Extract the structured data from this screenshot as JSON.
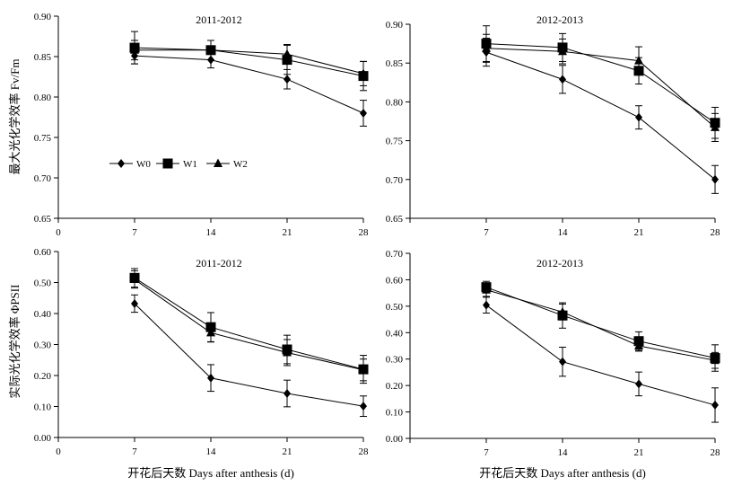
{
  "figure": {
    "ylabel_top": "最大光化学效率 Fv/Fm",
    "ylabel_bottom": "实际光化学效率 ΦPSII",
    "xlabel": "开花后天数 Days after anthesis (d)"
  },
  "legend": {
    "entries": [
      {
        "name": "W0",
        "marker": "diamond"
      },
      {
        "name": "W1",
        "marker": "square"
      },
      {
        "name": "W2",
        "marker": "triangle"
      }
    ]
  },
  "chart_data": [
    {
      "type": "line",
      "title": "2011-2012",
      "x": [
        7,
        14,
        21,
        28
      ],
      "xticks": [
        "0",
        "7",
        "14",
        "21",
        "28"
      ],
      "xlim": [
        0,
        28
      ],
      "ylim": [
        0.65,
        0.9
      ],
      "yticks": [
        "0.65",
        "0.70",
        "0.75",
        "0.80",
        "0.85",
        "0.90"
      ],
      "ylabel": "最大光化学效率 Fv/Fm",
      "series": [
        {
          "name": "W0",
          "marker": "diamond",
          "values": [
            0.851,
            0.846,
            0.822,
            0.78
          ],
          "errors": [
            0.01,
            0.01,
            0.012,
            0.016
          ]
        },
        {
          "name": "W1",
          "marker": "square",
          "values": [
            0.861,
            0.858,
            0.846,
            0.826
          ],
          "errors": [
            0.02,
            0.012,
            0.018,
            0.018
          ]
        },
        {
          "name": "W2",
          "marker": "triangle",
          "values": [
            0.858,
            0.858,
            0.853,
            0.829
          ],
          "errors": [
            0.012,
            0.012,
            0.012,
            0.015
          ]
        }
      ]
    },
    {
      "type": "line",
      "title": "2012-2013",
      "x": [
        7,
        14,
        21,
        28
      ],
      "xticks": [
        "7",
        "14",
        "21",
        "28"
      ],
      "xlim": [
        0,
        28
      ],
      "ylim": [
        0.65,
        0.9
      ],
      "yticks": [
        "0.65",
        "0.70",
        "0.75",
        "0.80",
        "0.85",
        "0.90"
      ],
      "series": [
        {
          "name": "W0",
          "marker": "diamond",
          "values": [
            0.864,
            0.829,
            0.78,
            0.7
          ],
          "errors": [
            0.018,
            0.018,
            0.015,
            0.018
          ]
        },
        {
          "name": "W1",
          "marker": "square",
          "values": [
            0.875,
            0.87,
            0.84,
            0.773
          ],
          "errors": [
            0.023,
            0.018,
            0.017,
            0.02
          ]
        },
        {
          "name": "W2",
          "marker": "triangle",
          "values": [
            0.869,
            0.865,
            0.853,
            0.767
          ],
          "errors": [
            0.018,
            0.016,
            0.018,
            0.018
          ]
        }
      ]
    },
    {
      "type": "line",
      "title": "2011-2012",
      "x": [
        7,
        14,
        21,
        28
      ],
      "xticks": [
        "0",
        "7",
        "14",
        "21",
        "28"
      ],
      "xlim": [
        0,
        28
      ],
      "ylim": [
        0,
        0.6
      ],
      "yticks": [
        "0.00",
        "0.10",
        "0.20",
        "0.30",
        "0.40",
        "0.50",
        "0.60"
      ],
      "ylabel": "实际光化学效率 ΦPSII",
      "xlabel": "开花后天数 Days after anthesis (d)",
      "series": [
        {
          "name": "W0",
          "marker": "diamond",
          "values": [
            0.432,
            0.192,
            0.142,
            0.101
          ],
          "errors": [
            0.028,
            0.043,
            0.043,
            0.033
          ]
        },
        {
          "name": "W1",
          "marker": "square",
          "values": [
            0.515,
            0.356,
            0.284,
            0.22
          ],
          "errors": [
            0.03,
            0.047,
            0.046,
            0.045
          ]
        },
        {
          "name": "W2",
          "marker": "triangle",
          "values": [
            0.51,
            0.338,
            0.274,
            0.218
          ],
          "errors": [
            0.028,
            0.03,
            0.042,
            0.035
          ]
        }
      ]
    },
    {
      "type": "line",
      "title": "2012-2013",
      "x": [
        7,
        14,
        21,
        28
      ],
      "xticks": [
        "7",
        "14",
        "21",
        "28"
      ],
      "xlim": [
        0,
        28
      ],
      "ylim": [
        0,
        0.7
      ],
      "yticks": [
        "0.00",
        "0.10",
        "0.20",
        "0.30",
        "0.40",
        "0.50",
        "0.60",
        "0.70"
      ],
      "xlabel": "开花后天数 Days after anthesis (d)",
      "series": [
        {
          "name": "W0",
          "marker": "diamond",
          "values": [
            0.504,
            0.29,
            0.206,
            0.126
          ],
          "errors": [
            0.03,
            0.055,
            0.045,
            0.065
          ]
        },
        {
          "name": "W1",
          "marker": "square",
          "values": [
            0.572,
            0.465,
            0.368,
            0.304
          ],
          "errors": [
            0.022,
            0.048,
            0.035,
            0.05
          ]
        },
        {
          "name": "W2",
          "marker": "triangle",
          "values": [
            0.562,
            0.478,
            0.35,
            0.295
          ],
          "errors": [
            0.025,
            0.03,
            0.02,
            0.03
          ]
        }
      ]
    }
  ]
}
